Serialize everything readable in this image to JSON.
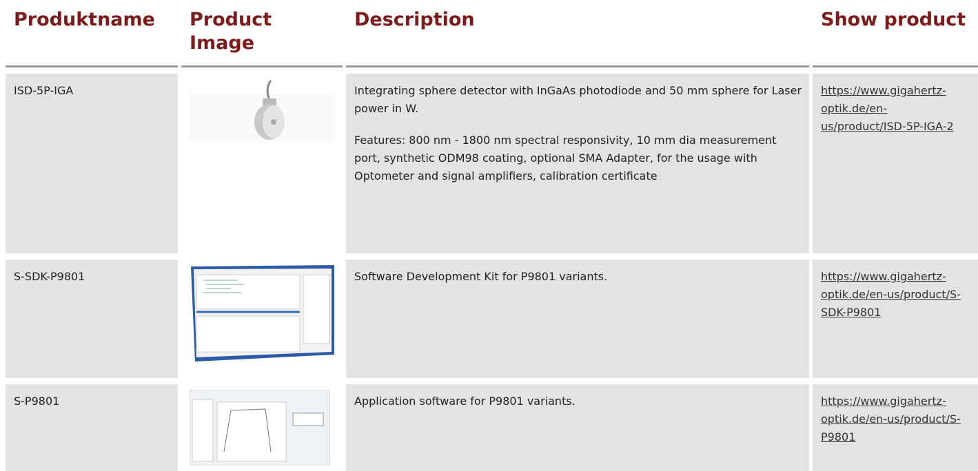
{
  "header": {
    "columns": [
      "Produktname",
      "Product Image",
      "Description",
      "Show product"
    ]
  },
  "rows": [
    {
      "name": "ISD-5P-IGA",
      "description": [
        "Integrating sphere detector with InGaAs photodiode and 50 mm sphere for Laser power in W.",
        "Features: 800 nm - 1800 nm spectral responsivity, 10 mm dia measurement port, synthetic ODM98 coating, optional SMA Adapter, for the usage with Optometer and signal amplifiers, calibration certificate"
      ],
      "link": "https://www.gigahertz-optik.de/en-us/product/ISD-5P-IGA-2"
    },
    {
      "name": "S-SDK-P9801",
      "description": [
        "Software Development Kit for P9801 variants."
      ],
      "link": "https://www.gigahertz-optik.de/en-us/product/S-SDK-P9801"
    },
    {
      "name": "S-P9801",
      "description": [
        "Application software for P9801 variants."
      ],
      "link": "https://www.gigahertz-optik.de/en-us/product/S-P9801"
    }
  ]
}
